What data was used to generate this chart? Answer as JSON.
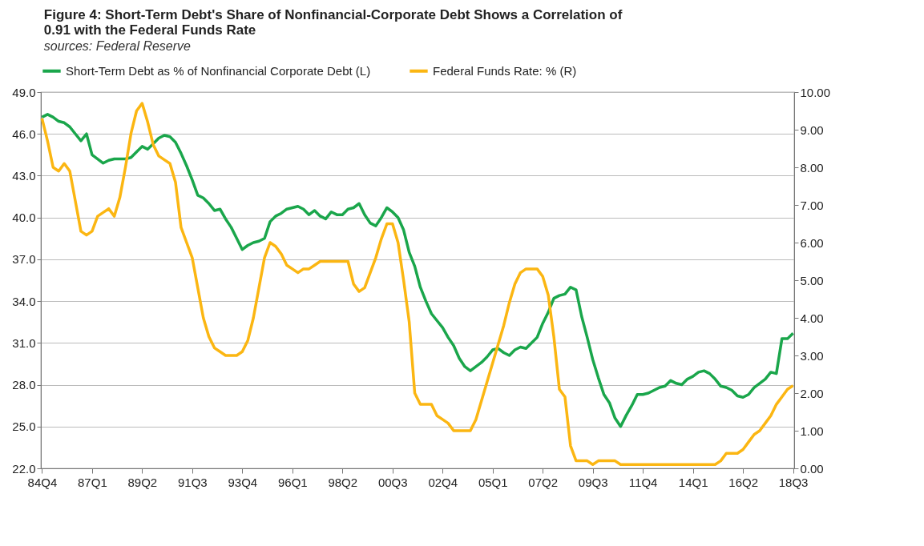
{
  "chart_data": {
    "type": "line",
    "title": "Figure 4: Short-Term Debt's Share of Nonfinancial-Corporate Debt Shows a Correlation of 0.91 with the Federal Funds Rate",
    "subtitle": "sources: Federal Reserve",
    "categories": [
      "84Q4",
      null,
      null,
      null,
      null,
      null,
      null,
      null,
      null,
      "87Q1",
      null,
      null,
      null,
      null,
      null,
      null,
      null,
      null,
      "89Q2",
      null,
      null,
      null,
      null,
      null,
      null,
      null,
      null,
      "91Q3",
      null,
      null,
      null,
      null,
      null,
      null,
      null,
      null,
      "93Q4",
      null,
      null,
      null,
      null,
      null,
      null,
      null,
      null,
      "96Q1",
      null,
      null,
      null,
      null,
      null,
      null,
      null,
      null,
      "98Q2",
      null,
      null,
      null,
      null,
      null,
      null,
      null,
      null,
      "00Q3",
      null,
      null,
      null,
      null,
      null,
      null,
      null,
      null,
      "02Q4",
      null,
      null,
      null,
      null,
      null,
      null,
      null,
      null,
      "05Q1",
      null,
      null,
      null,
      null,
      null,
      null,
      null,
      null,
      "07Q2",
      null,
      null,
      null,
      null,
      null,
      null,
      null,
      null,
      "09Q3",
      null,
      null,
      null,
      null,
      null,
      null,
      null,
      null,
      "11Q4",
      null,
      null,
      null,
      null,
      null,
      null,
      null,
      null,
      "14Q1",
      null,
      null,
      null,
      null,
      null,
      null,
      null,
      null,
      "16Q2",
      null,
      null,
      null,
      null,
      null,
      null,
      null,
      null,
      "18Q3"
    ],
    "series": [
      {
        "name": "Short-Term Debt as % of Nonfinancial Corporate Debt (L)",
        "color": "#1aa64b",
        "values": [
          47.2,
          47.4,
          47.2,
          46.9,
          46.8,
          46.5,
          46.0,
          45.5,
          46.0,
          44.5,
          44.2,
          43.9,
          44.1,
          44.2,
          44.2,
          44.2,
          44.3,
          44.7,
          45.1,
          44.9,
          45.3,
          45.7,
          45.9,
          45.8,
          45.4,
          44.6,
          43.7,
          42.7,
          41.6,
          41.4,
          41.0,
          40.5,
          40.6,
          39.9,
          39.3,
          38.5,
          37.7,
          38.0,
          38.2,
          38.3,
          38.5,
          39.7,
          40.1,
          40.3,
          40.6,
          40.7,
          40.8,
          40.6,
          40.2,
          40.5,
          40.1,
          39.9,
          40.4,
          40.2,
          40.2,
          40.6,
          40.7,
          41.0,
          40.2,
          39.6,
          39.4,
          40.0,
          40.7,
          40.4,
          40.0,
          39.1,
          37.5,
          36.5,
          35.0,
          34.0,
          33.1,
          32.6,
          32.1,
          31.4,
          30.8,
          29.9,
          29.3,
          29.0,
          29.3,
          29.6,
          30.0,
          30.5,
          30.6,
          30.3,
          30.1,
          30.5,
          30.7,
          30.6,
          31.0,
          31.4,
          32.4,
          33.2,
          34.2,
          34.4,
          34.5,
          35.0,
          34.8,
          32.9,
          31.4,
          29.8,
          28.5,
          27.3,
          26.7,
          25.6,
          25.0,
          25.8,
          26.5,
          27.3,
          27.3,
          27.4,
          27.6,
          27.8,
          27.9,
          28.3,
          28.1,
          28.0,
          28.4,
          28.6,
          28.9,
          29.0,
          28.8,
          28.4,
          27.9,
          27.8,
          27.6,
          27.2,
          27.1,
          27.3,
          27.8,
          28.1,
          28.4,
          28.9,
          28.8,
          31.3,
          31.3,
          31.7
        ]
      },
      {
        "name": "Federal Funds Rate: % (R)",
        "color": "#fbb612",
        "axis": "y2",
        "values": [
          9.3,
          8.7,
          8.0,
          7.9,
          8.1,
          7.9,
          7.1,
          6.3,
          6.2,
          6.3,
          6.7,
          6.8,
          6.9,
          6.7,
          7.2,
          8.0,
          8.9,
          9.5,
          9.7,
          9.2,
          8.6,
          8.3,
          8.2,
          8.1,
          7.6,
          6.4,
          6.0,
          5.6,
          4.8,
          4.0,
          3.5,
          3.2,
          3.1,
          3.0,
          3.0,
          3.0,
          3.1,
          3.4,
          4.0,
          4.8,
          5.6,
          6.0,
          5.9,
          5.7,
          5.4,
          5.3,
          5.2,
          5.3,
          5.3,
          5.4,
          5.5,
          5.5,
          5.5,
          5.5,
          5.5,
          5.5,
          4.9,
          4.7,
          4.8,
          5.2,
          5.6,
          6.1,
          6.5,
          6.5,
          6.0,
          5.0,
          3.9,
          2.0,
          1.7,
          1.7,
          1.7,
          1.4,
          1.3,
          1.2,
          1.0,
          1.0,
          1.0,
          1.0,
          1.3,
          1.8,
          2.3,
          2.8,
          3.3,
          3.8,
          4.4,
          4.9,
          5.2,
          5.3,
          5.3,
          5.3,
          5.1,
          4.6,
          3.5,
          2.1,
          1.9,
          0.6,
          0.2,
          0.2,
          0.2,
          0.1,
          0.2,
          0.2,
          0.2,
          0.2,
          0.1,
          0.1,
          0.1,
          0.1,
          0.1,
          0.1,
          0.1,
          0.1,
          0.1,
          0.1,
          0.1,
          0.1,
          0.1,
          0.1,
          0.1,
          0.1,
          0.1,
          0.1,
          0.2,
          0.4,
          0.4,
          0.4,
          0.5,
          0.7,
          0.9,
          1.0,
          1.2,
          1.4,
          1.7,
          1.9,
          2.1,
          2.2
        ]
      }
    ],
    "ylim": [
      22,
      49
    ],
    "yticks": [
      {
        "value": 22,
        "label": "22.0"
      },
      {
        "value": 25,
        "label": "25.0"
      },
      {
        "value": 28,
        "label": "28.0"
      },
      {
        "value": 31,
        "label": "31.0"
      },
      {
        "value": 34,
        "label": "34.0"
      },
      {
        "value": 37,
        "label": "37.0"
      },
      {
        "value": 40,
        "label": "40.0"
      },
      {
        "value": 43,
        "label": "43.0"
      },
      {
        "value": 46,
        "label": "46.0"
      },
      {
        "value": 49,
        "label": "49.0"
      }
    ],
    "y2lim": [
      0,
      10
    ],
    "y2ticks": [
      {
        "value": 0,
        "label": "0.00"
      },
      {
        "value": 1,
        "label": "1.00"
      },
      {
        "value": 2,
        "label": "2.00"
      },
      {
        "value": 3,
        "label": "3.00"
      },
      {
        "value": 4,
        "label": "4.00"
      },
      {
        "value": 5,
        "label": "5.00"
      },
      {
        "value": 6,
        "label": "6.00"
      },
      {
        "value": 7,
        "label": "7.00"
      },
      {
        "value": 8,
        "label": "8.00"
      },
      {
        "value": 9,
        "label": "9.00"
      },
      {
        "value": 10,
        "label": "10.00"
      }
    ],
    "grid": "y",
    "legend": "top"
  }
}
